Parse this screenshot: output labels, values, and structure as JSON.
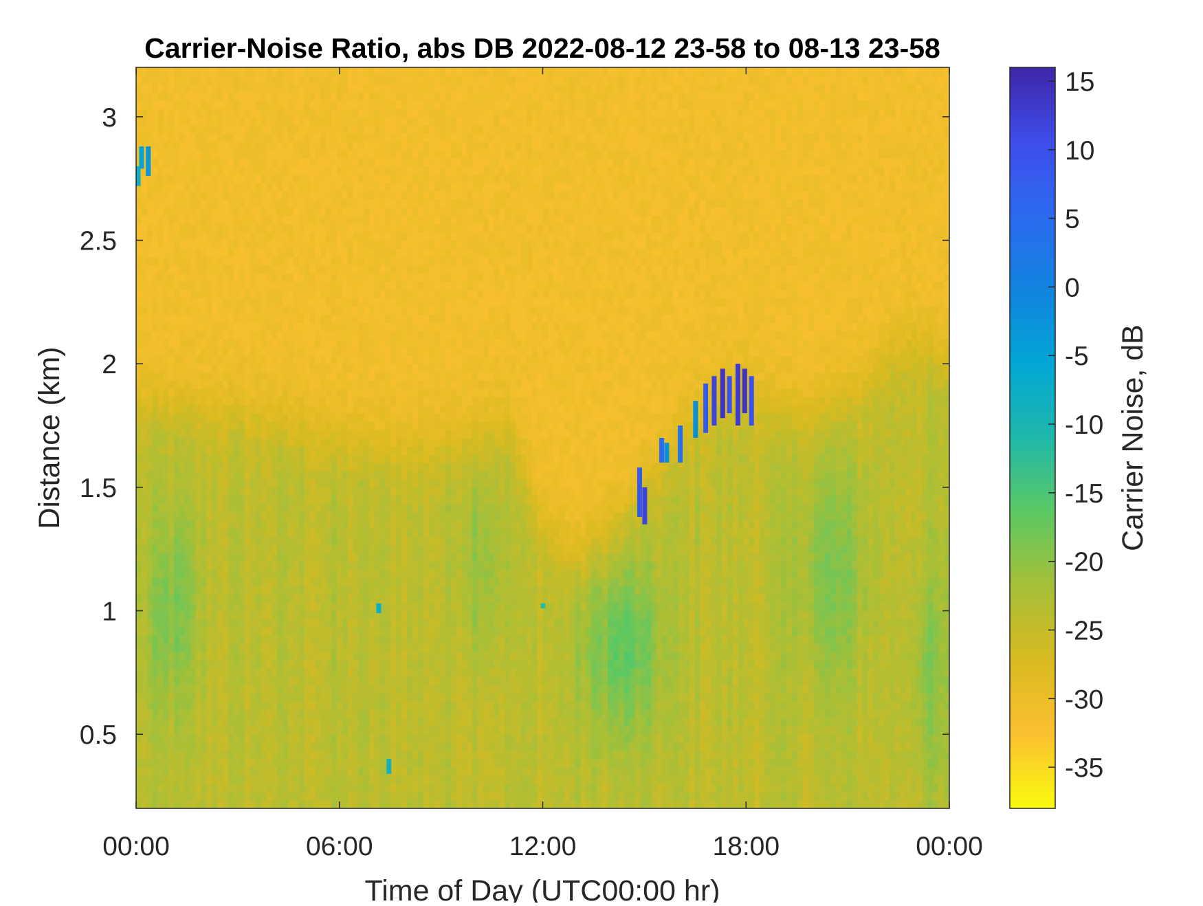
{
  "chart_data": {
    "type": "heatmap",
    "title": "Carrier-Noise Ratio, abs DB 2022-08-12 23-58 to 08-13 23-58",
    "xlabel": "Time of Day (UTC00:00 hr)",
    "ylabel": "Distance (km)",
    "colorbar_label": "Carrier Noise, dB",
    "xlim": [
      0,
      24
    ],
    "ylim": [
      0.2,
      3.2
    ],
    "clim": [
      -38,
      16
    ],
    "x_ticks": [
      0,
      6,
      12,
      18,
      24
    ],
    "x_tick_labels": [
      "00:00",
      "06:00",
      "12:00",
      "18:00",
      "00:00"
    ],
    "y_ticks": [
      0.5,
      1,
      1.5,
      2,
      2.5,
      3
    ],
    "y_tick_labels": [
      "0.5",
      "1",
      "1.5",
      "2",
      "2.5",
      "3"
    ],
    "colorbar_ticks": [
      -35,
      -30,
      -25,
      -20,
      -15,
      -10,
      -5,
      0,
      5,
      10,
      15
    ],
    "colorbar_tick_labels": [
      "-35",
      "-30",
      "-25",
      "-20",
      "-15",
      "-10",
      "-5",
      "0",
      "5",
      "10",
      "15"
    ],
    "colormap": "parula",
    "colormap_stops": [
      "#f9fb0e",
      "#fbc031",
      "#d9ba21",
      "#a6bf38",
      "#5cc863",
      "#1fb8aa",
      "#02a6d6",
      "#1183de",
      "#2c6af0",
      "#3e4dea",
      "#3e26a8"
    ],
    "background_level_db": -31,
    "boundary_layer_top_km": [
      [
        0,
        1.85
      ],
      [
        3,
        1.8
      ],
      [
        6,
        1.7
      ],
      [
        8,
        1.65
      ],
      [
        10,
        1.7
      ],
      [
        11,
        1.75
      ],
      [
        12,
        1.35
      ],
      [
        13,
        1.2
      ],
      [
        14,
        1.3
      ],
      [
        15,
        1.5
      ],
      [
        16,
        1.7
      ],
      [
        17,
        1.85
      ],
      [
        18,
        1.9
      ],
      [
        19,
        1.8
      ],
      [
        20,
        1.8
      ],
      [
        21,
        1.85
      ],
      [
        22,
        2.0
      ],
      [
        23,
        2.1
      ],
      [
        24,
        2.0
      ]
    ],
    "low_cn_regions": [
      {
        "time_hr": [
          0.3,
          1.8
        ],
        "distance_km": [
          0.6,
          1.4
        ],
        "level_db": -19
      },
      {
        "time_hr": [
          9.5,
          10.8
        ],
        "distance_km": [
          0.8,
          1.6
        ],
        "level_db": -20
      },
      {
        "time_hr": [
          13.2,
          15.5
        ],
        "distance_km": [
          0.5,
          1.2
        ],
        "level_db": -17
      },
      {
        "time_hr": [
          19.5,
          21.5
        ],
        "distance_km": [
          0.7,
          1.6
        ],
        "level_db": -19
      },
      {
        "time_hr": [
          22.8,
          24.0
        ],
        "distance_km": [
          0.3,
          1.2
        ],
        "level_db": -20
      }
    ],
    "high_cn_features": [
      {
        "time_hr": 0.05,
        "distance_km": [
          2.72,
          2.8
        ],
        "value_db": -8
      },
      {
        "time_hr": 0.15,
        "distance_km": [
          2.79,
          2.88
        ],
        "value_db": -5
      },
      {
        "time_hr": 0.35,
        "distance_km": [
          2.76,
          2.88
        ],
        "value_db": -3
      },
      {
        "time_hr": 7.15,
        "distance_km": [
          0.99,
          1.03
        ],
        "value_db": -8
      },
      {
        "time_hr": 7.45,
        "distance_km": [
          0.34,
          0.4
        ],
        "value_db": -9
      },
      {
        "time_hr": 12.0,
        "distance_km": [
          1.01,
          1.03
        ],
        "value_db": -12
      },
      {
        "time_hr": 14.85,
        "distance_km": [
          1.38,
          1.58
        ],
        "value_db": 8
      },
      {
        "time_hr": 15.0,
        "distance_km": [
          1.35,
          1.5
        ],
        "value_db": 12
      },
      {
        "time_hr": 15.5,
        "distance_km": [
          1.6,
          1.7
        ],
        "value_db": 5
      },
      {
        "time_hr": 15.65,
        "distance_km": [
          1.6,
          1.68
        ],
        "value_db": -2
      },
      {
        "time_hr": 16.05,
        "distance_km": [
          1.6,
          1.75
        ],
        "value_db": 4
      },
      {
        "time_hr": 16.5,
        "distance_km": [
          1.7,
          1.85
        ],
        "value_db": -2
      },
      {
        "time_hr": 16.8,
        "distance_km": [
          1.72,
          1.92
        ],
        "value_db": 8
      },
      {
        "time_hr": 17.05,
        "distance_km": [
          1.75,
          1.95
        ],
        "value_db": 12
      },
      {
        "time_hr": 17.3,
        "distance_km": [
          1.78,
          1.98
        ],
        "value_db": 14
      },
      {
        "time_hr": 17.5,
        "distance_km": [
          1.8,
          1.95
        ],
        "value_db": 10
      },
      {
        "time_hr": 17.75,
        "distance_km": [
          1.75,
          2.0
        ],
        "value_db": 13
      },
      {
        "time_hr": 17.95,
        "distance_km": [
          1.8,
          1.98
        ],
        "value_db": 14
      },
      {
        "time_hr": 18.15,
        "distance_km": [
          1.75,
          1.95
        ],
        "value_db": 10
      }
    ]
  }
}
